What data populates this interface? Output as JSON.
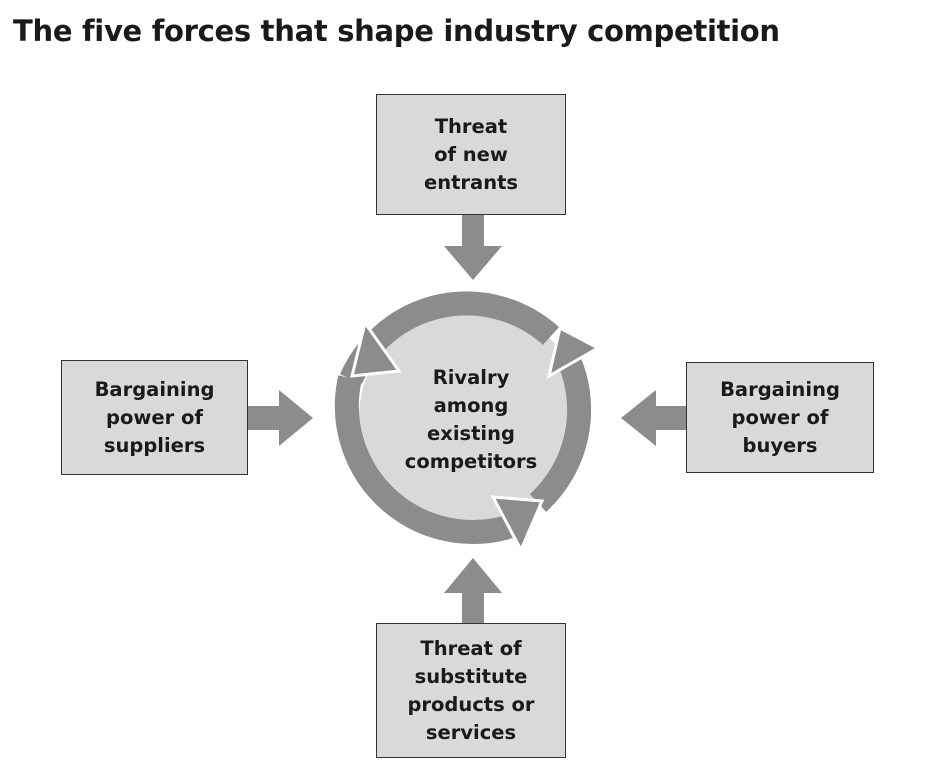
{
  "title": "The five forces that shape industry competition",
  "forces": {
    "top": {
      "lines": [
        "Threat",
        "of new",
        "entrants"
      ]
    },
    "left": {
      "lines": [
        "Bargaining",
        "power of",
        "suppliers"
      ]
    },
    "right": {
      "lines": [
        "Bargaining",
        "power of",
        "buyers"
      ]
    },
    "bottom": {
      "lines": [
        "Threat of",
        "substitute",
        "products or",
        "services"
      ]
    }
  },
  "center": {
    "lines": [
      "Rivalry",
      "among",
      "existing",
      "competitors"
    ]
  },
  "colors": {
    "box_fill": "#d9d9d9",
    "box_border": "#333333",
    "arrow": "#8c8c8c",
    "circle_fill": "#d9d9d9"
  }
}
